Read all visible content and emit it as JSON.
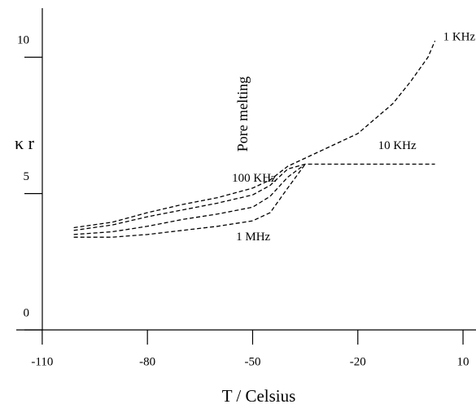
{
  "chart_data": {
    "type": "line",
    "ylabel": "κ r",
    "xlabel": "T / Celsius",
    "annotation": "Pore melting",
    "x": [
      -101,
      -90,
      -80,
      -70,
      -60,
      -50,
      -45,
      -40,
      -35,
      -30,
      -20,
      -10,
      -5,
      0,
      2
    ],
    "series": [
      {
        "name": "1 KHz",
        "color": "#000000",
        "values": [
          3.75,
          3.95,
          4.3,
          4.6,
          4.85,
          5.2,
          5.5,
          6.0,
          6.3,
          6.6,
          7.2,
          8.3,
          9.1,
          10.0,
          10.6
        ]
      },
      {
        "name": "10 KHz",
        "color": "#000000",
        "values": [
          3.65,
          3.85,
          4.15,
          4.4,
          4.65,
          4.95,
          5.3,
          5.9,
          6.08,
          6.08,
          6.08,
          6.08,
          6.08,
          6.08,
          6.08
        ]
      },
      {
        "name": "100 KHz",
        "color": "#000000",
        "values": [
          3.5,
          3.6,
          3.8,
          4.05,
          4.25,
          4.5,
          4.9,
          5.6,
          6.08,
          null,
          null,
          null,
          null,
          null,
          null
        ]
      },
      {
        "name": "1 MHz",
        "color": "#000000",
        "values": [
          3.4,
          3.4,
          3.5,
          3.65,
          3.8,
          4.0,
          4.3,
          5.2,
          6.08,
          null,
          null,
          null,
          null,
          null,
          null
        ]
      }
    ],
    "xlim": [
      -117.4,
      13.7
    ],
    "ylim": [
      0,
      11.8
    ],
    "xticks": [
      -110,
      -80,
      -50,
      -20,
      10
    ],
    "yticks": [
      0,
      5,
      10
    ]
  }
}
